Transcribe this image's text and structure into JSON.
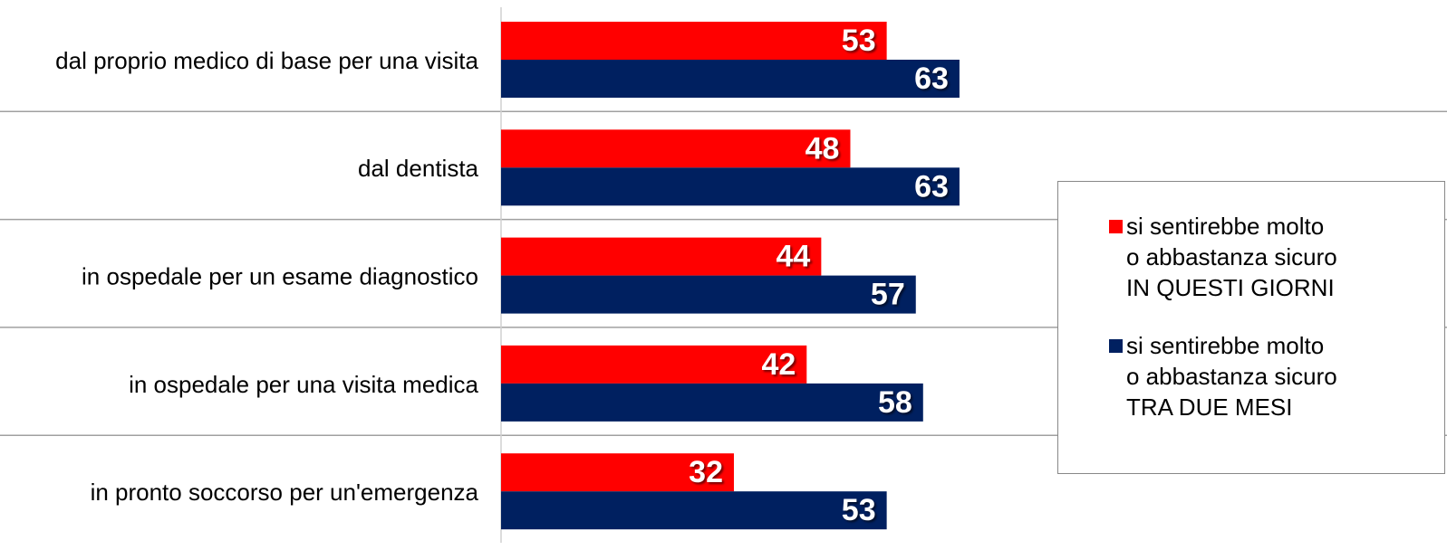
{
  "chart_data": {
    "type": "hbar",
    "categories": [
      "dal proprio medico di base per una visita",
      "dal dentista",
      "in ospedale per un esame diagnostico",
      "in ospedale per una visita medica",
      "in pronto soccorso per un'emergenza"
    ],
    "series": [
      {
        "name": "si sentirebbe molto\no abbastanza sicuro\nIN QUESTI GIORNI",
        "color": "#ff0000",
        "values": [
          53,
          48,
          44,
          42,
          32
        ]
      },
      {
        "name": "si sentirebbe molto\no abbastanza sicuro\nTRA DUE MESI",
        "color": "#002060",
        "values": [
          63,
          63,
          57,
          58,
          53
        ]
      }
    ],
    "xlim": [
      0,
      130
    ]
  }
}
